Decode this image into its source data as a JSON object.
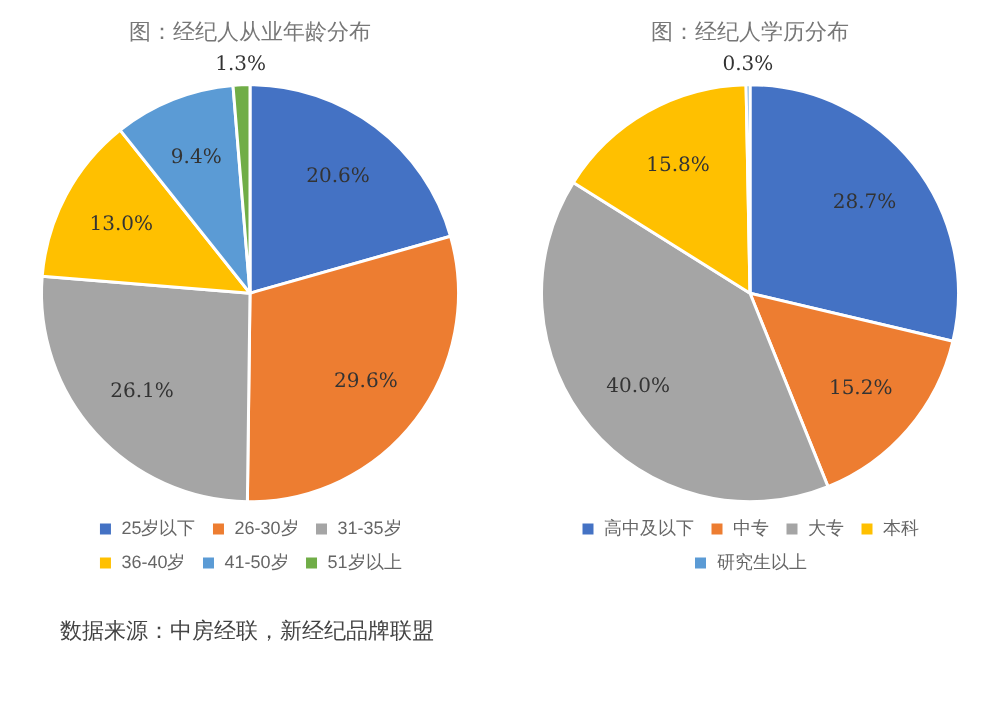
{
  "chart_data": [
    {
      "type": "pie",
      "title": "图：经纪人从业年龄分布",
      "categories": [
        "25岁以下",
        "26-30岁",
        "31-35岁",
        "36-40岁",
        "41-50岁",
        "51岁以上"
      ],
      "values": [
        20.6,
        29.6,
        26.1,
        13.0,
        9.4,
        1.3
      ],
      "value_labels": [
        "20.6%",
        "29.6%",
        "26.1%",
        "13.0%",
        "9.4%",
        "1.3%"
      ],
      "colors": [
        "#4472c4",
        "#ed7d31",
        "#a5a5a5",
        "#ffc000",
        "#5b9bd5",
        "#70ad47"
      ],
      "legend": "bottom",
      "annotations": [
        "数据来源：中房经联，新经纪品牌联盟"
      ]
    },
    {
      "type": "pie",
      "title": "图：经纪人学历分布",
      "categories": [
        "高中及以下",
        "中专",
        "大专",
        "本科",
        "研究生以上"
      ],
      "values": [
        28.7,
        15.2,
        40.0,
        15.8,
        0.3
      ],
      "value_labels": [
        "28.7%",
        "15.2%",
        "40.0%",
        "15.8%",
        "0.3%"
      ],
      "colors": [
        "#4472c4",
        "#ed7d31",
        "#a5a5a5",
        "#ffc000",
        "#5b9bd5"
      ],
      "legend": "bottom"
    }
  ]
}
